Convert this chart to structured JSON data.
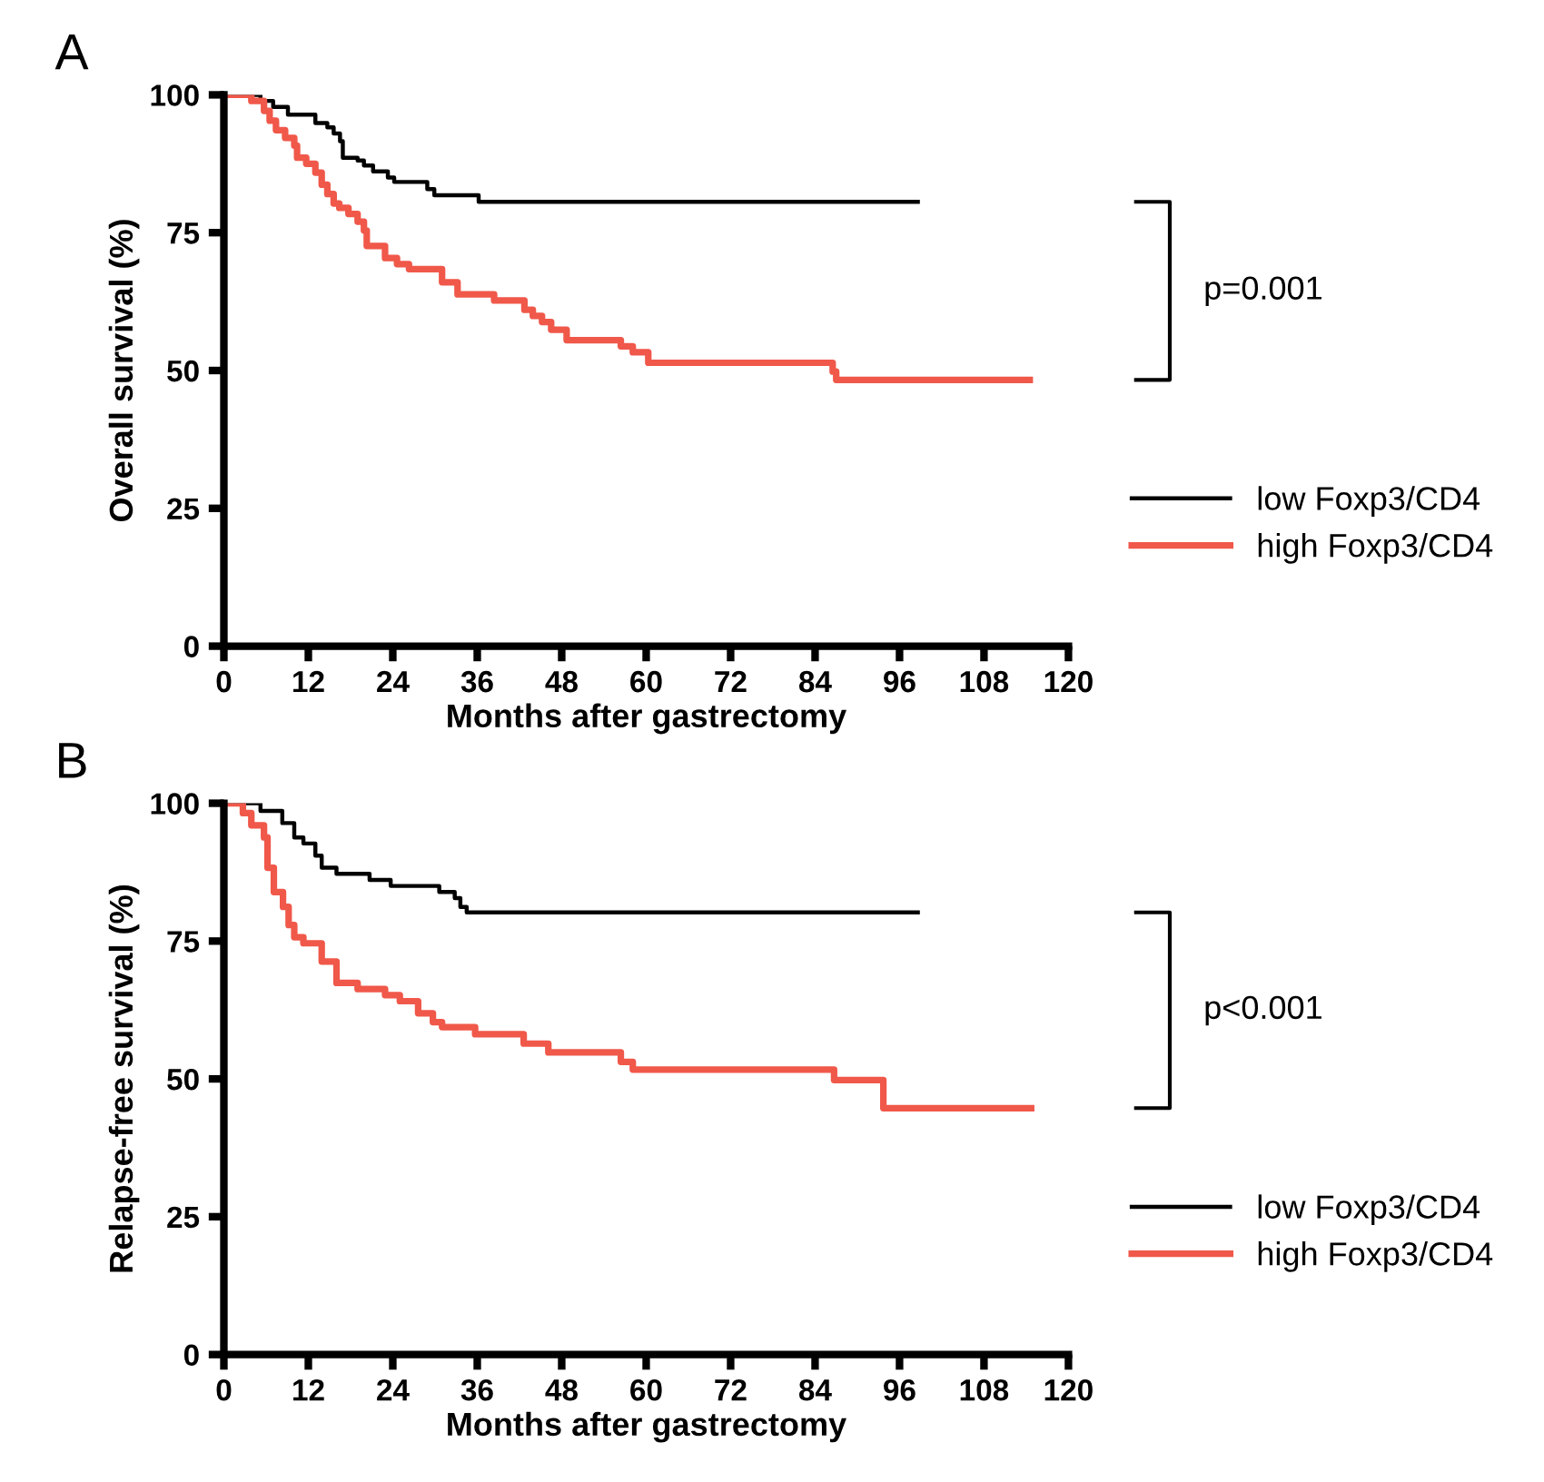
{
  "chart_data": [
    {
      "type": "step",
      "xlabel": "Months after gastrectomy",
      "ylabel": "Overall survival (%)",
      "xlim": [
        0,
        120
      ],
      "ylim": [
        0,
        100
      ],
      "xticks": [
        0,
        12,
        24,
        36,
        48,
        60,
        72,
        84,
        96,
        108,
        120
      ],
      "yticks": [
        0,
        25,
        50,
        75,
        100
      ],
      "legend": "right",
      "annotations": [
        "A",
        "p=0.001"
      ],
      "series": [
        {
          "name": "low Foxp3/CD4",
          "color": "#000000",
          "x": [
            0,
            5.2,
            7.0,
            9.1,
            13.0,
            14.7,
            15.6,
            16.5,
            16.9,
            19.0,
            19.9,
            21.2,
            23.3,
            24.2,
            28.9,
            29.9,
            36.2,
            98.6
          ],
          "values": [
            100,
            98.9,
            97.8,
            96.4,
            94.9,
            94.1,
            93.0,
            91.6,
            88.6,
            88.1,
            87.2,
            86.1,
            85.0,
            84.2,
            82.9,
            81.8,
            80.6,
            80.6
          ]
        },
        {
          "name": "high Foxp3/CD4",
          "color": "#f0584a",
          "x": [
            0,
            3.9,
            5.7,
            6.5,
            7.4,
            8.7,
            10.0,
            10.4,
            11.7,
            13.0,
            13.9,
            14.7,
            15.6,
            16.4,
            17.7,
            19.0,
            19.9,
            20.3,
            22.9,
            24.6,
            26.3,
            31.0,
            33.2,
            38.4,
            42.7,
            43.9,
            45.2,
            46.5,
            48.7,
            56.4,
            58.1,
            60.3,
            86.5,
            87.0,
            114.5
          ],
          "values": [
            100,
            98.9,
            97.1,
            95.3,
            93.6,
            92.2,
            90.8,
            88.6,
            87.5,
            85.9,
            83.7,
            82.0,
            80.3,
            79.5,
            78.4,
            77.0,
            75.4,
            72.6,
            70.4,
            69.3,
            68.4,
            66.0,
            63.8,
            62.7,
            61.0,
            59.9,
            58.8,
            57.4,
            55.5,
            54.4,
            53.3,
            51.4,
            49.8,
            48.3,
            48.3
          ]
        }
      ]
    },
    {
      "type": "step",
      "xlabel": "Months after gastrectomy",
      "ylabel": "Relapse-free survival (%)",
      "xlim": [
        0,
        120
      ],
      "ylim": [
        0,
        100
      ],
      "xticks": [
        0,
        12,
        24,
        36,
        48,
        60,
        72,
        84,
        96,
        108,
        120
      ],
      "yticks": [
        0,
        25,
        50,
        75,
        100
      ],
      "legend": "right",
      "annotations": [
        "B",
        "p<0.001"
      ],
      "series": [
        {
          "name": "low Foxp3/CD4",
          "color": "#000000",
          "x": [
            0,
            5.2,
            8.3,
            10.0,
            11.3,
            13.0,
            13.9,
            16.0,
            20.7,
            23.7,
            30.6,
            32.8,
            33.6,
            34.5,
            98.6
          ],
          "values": [
            100,
            98.6,
            96.4,
            93.8,
            92.7,
            90.5,
            88.3,
            87.2,
            86.1,
            85.0,
            83.9,
            82.8,
            81.2,
            80.2,
            80.2
          ]
        },
        {
          "name": "high Foxp3/CD4",
          "color": "#f0584a",
          "x": [
            0,
            2.7,
            3.9,
            5.7,
            6.2,
            7.1,
            8.4,
            9.2,
            10.0,
            11.3,
            13.9,
            16.0,
            19.0,
            22.9,
            25.0,
            27.6,
            29.7,
            31.0,
            35.7,
            42.6,
            46.1,
            56.4,
            58.1,
            86.7,
            93.7,
            114.7
          ],
          "values": [
            100,
            98.2,
            96.0,
            93.8,
            88.3,
            83.9,
            81.2,
            77.9,
            75.7,
            74.6,
            71.3,
            67.4,
            66.3,
            65.2,
            64.1,
            61.9,
            60.3,
            59.4,
            58.1,
            56.4,
            54.8,
            53.1,
            51.7,
            49.8,
            44.7,
            44.7
          ]
        }
      ]
    }
  ]
}
